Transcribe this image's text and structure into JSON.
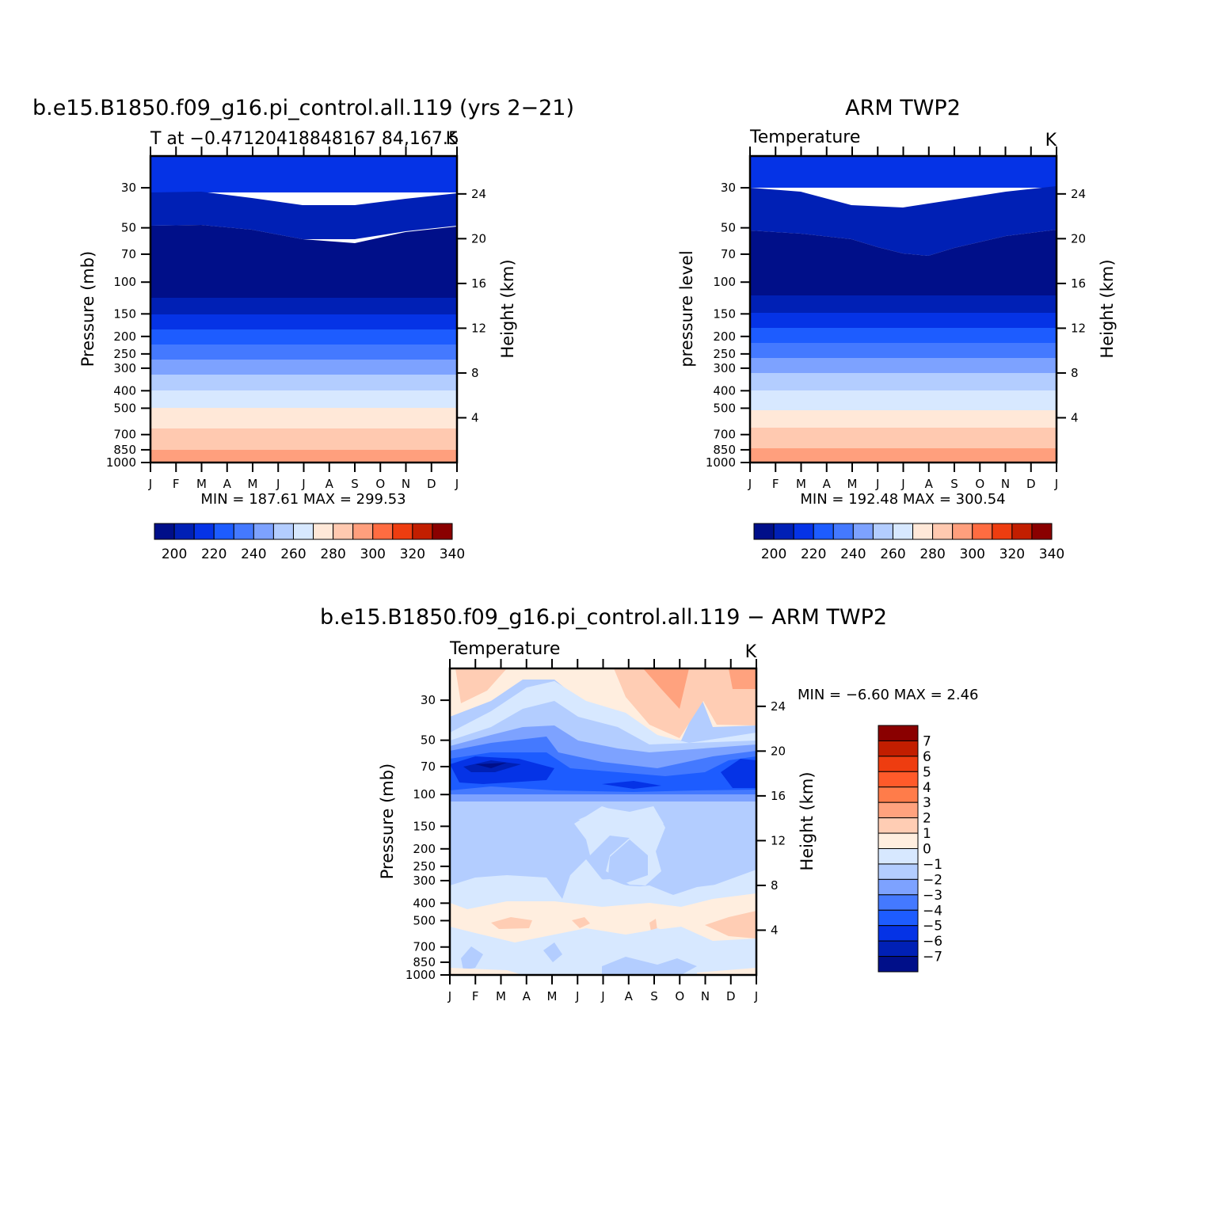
{
  "figure": {
    "main_title": "b.e15.B1850.f09_g16.pi_control.all.119 (yrs 2−21)",
    "obs_title": "ARM TWP2",
    "diff_title": "b.e15.B1850.f09_g16.pi_control.all.119 − ARM TWP2"
  },
  "chart_data": [
    {
      "id": "model",
      "type": "heatmap",
      "subtitle_left": "T at −0.47120418848167 84,167.5",
      "subtitle_right": "K",
      "ylabel": "Pressure (mb)",
      "ylabel_right": "Height (km)",
      "x_ticks": [
        "J",
        "F",
        "M",
        "A",
        "M",
        "J",
        "J",
        "A",
        "S",
        "O",
        "N",
        "D",
        "J"
      ],
      "y_ticks": [
        30,
        50,
        70,
        100,
        150,
        200,
        250,
        300,
        400,
        500,
        700,
        850,
        1000
      ],
      "y_log": true,
      "height_ticks": [
        4,
        8,
        12,
        16,
        20,
        24
      ],
      "stats": "MIN =  187.61  MAX =  299.53",
      "colorbar_labels": [
        "200",
        "220",
        "240",
        "260",
        "280",
        "300",
        "320",
        "340"
      ],
      "colorbar_colors": [
        "#000f89",
        "#0020b5",
        "#0533e6",
        "#1d5cff",
        "#4479ff",
        "#7da2ff",
        "#b3cdff",
        "#d7e8ff",
        "#ffe8d8",
        "#ffc9b0",
        "#ff9f7d",
        "#ff6c41",
        "#ee3d10",
        "#c21e00",
        "#8a0000"
      ],
      "contour_levels": [
        195,
        205,
        215,
        225,
        235,
        245,
        255,
        265,
        275,
        285,
        295
      ],
      "bands": [
        {
          "p": [
            [
              30,
              44
            ],
            [
              30,
              44
            ],
            [
              30,
              45
            ],
            [
              30,
              46
            ],
            [
              30,
              47
            ],
            [
              30,
              49
            ],
            [
              30,
              51
            ],
            [
              30,
              51
            ],
            [
              30,
              51
            ],
            [
              30,
              50
            ],
            [
              30,
              49
            ],
            [
              30,
              47
            ],
            [
              30,
              46
            ]
          ],
          "color": "#0533e6"
        }
      ]
    },
    {
      "id": "obs",
      "type": "heatmap",
      "subtitle_left": "Temperature",
      "subtitle_right": "K",
      "ylabel": "pressure level",
      "ylabel_right": "Height (km)",
      "x_ticks": [
        "J",
        "F",
        "M",
        "A",
        "M",
        "J",
        "J",
        "A",
        "S",
        "O",
        "N",
        "D",
        "J"
      ],
      "y_ticks": [
        30,
        50,
        70,
        100,
        150,
        200,
        250,
        300,
        400,
        500,
        700,
        850,
        1000
      ],
      "y_log": true,
      "height_ticks": [
        4,
        8,
        12,
        16,
        20,
        24
      ],
      "stats": "MIN =  192.48  MAX =  300.54",
      "colorbar_labels": [
        "200",
        "220",
        "240",
        "260",
        "280",
        "300",
        "320",
        "340"
      ],
      "colorbar_colors": [
        "#000f89",
        "#0020b5",
        "#0533e6",
        "#1d5cff",
        "#4479ff",
        "#7da2ff",
        "#b3cdff",
        "#d7e8ff",
        "#ffe8d8",
        "#ffc9b0",
        "#ff9f7d",
        "#ff6c41",
        "#ee3d10",
        "#c21e00",
        "#8a0000"
      ]
    },
    {
      "id": "diff",
      "type": "heatmap",
      "subtitle_left": "Temperature",
      "subtitle_right": "K",
      "ylabel": "Pressure (mb)",
      "ylabel_right": "Height (km)",
      "x_ticks": [
        "J",
        "F",
        "M",
        "A",
        "M",
        "J",
        "J",
        "A",
        "S",
        "O",
        "N",
        "D",
        "J"
      ],
      "y_ticks": [
        30,
        50,
        70,
        100,
        150,
        200,
        250,
        300,
        400,
        500,
        700,
        850,
        1000
      ],
      "y_log": true,
      "height_ticks": [
        4,
        8,
        12,
        16,
        20,
        24
      ],
      "stats": "MIN =   −6.60  MAX =    2.46",
      "colorbar_labels": [
        "7",
        "6",
        "5",
        "4",
        "3",
        "2",
        "1",
        "0",
        "−1",
        "−2",
        "−3",
        "−4",
        "−5",
        "−6",
        "−7"
      ],
      "colorbar_colors": [
        "#8a0000",
        "#c21e00",
        "#ee3d10",
        "#ff5a2a",
        "#ff7c4a",
        "#ffa27e",
        "#ffcdb4",
        "#ffeedf",
        "#d7e8ff",
        "#b3cdff",
        "#7da2ff",
        "#4479ff",
        "#1d5cff",
        "#0533e6",
        "#0020b5",
        "#000f89"
      ]
    }
  ]
}
